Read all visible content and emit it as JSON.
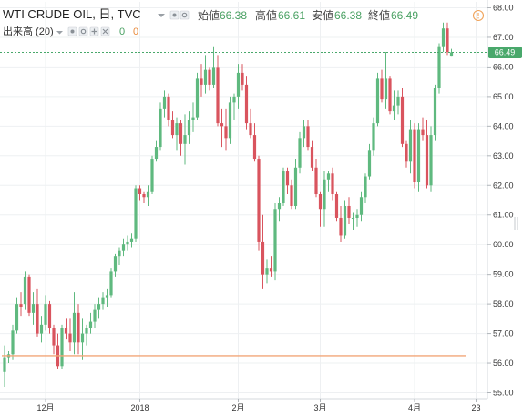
{
  "header": {
    "symbol": "WTI CRUDE OIL, 日, TVC",
    "open_label": "始値",
    "open_value": "66.38",
    "high_label": "高値",
    "high_value": "66.61",
    "low_label": "安値",
    "low_value": "66.38",
    "close_label": "終値",
    "close_value": "66.49",
    "alert_icon": "clock-alert-icon"
  },
  "indicator": {
    "label": "出来高 (20)",
    "value_a": "0",
    "value_b": "0",
    "icons": [
      "eye-icon",
      "settings-icon",
      "plus-icon",
      "close-icon"
    ]
  },
  "colors": {
    "up": "#5fb97f",
    "down": "#d9545e",
    "last_price_bg": "#49a86b",
    "volume_line": "#f2a679",
    "grid": "#eef0f2"
  },
  "chart_data": {
    "type": "candlestick",
    "title": "WTI CRUDE OIL, 日, TVC",
    "ylim": [
      54.8,
      68.2
    ],
    "y_ticks": [
      "55.00",
      "56.00",
      "57.00",
      "58.00",
      "59.00",
      "60.00",
      "61.00",
      "62.00",
      "63.00",
      "64.00",
      "65.00",
      "66.00",
      "67.00",
      "68.00"
    ],
    "x_ticks": [
      {
        "label": "12月",
        "index": 10
      },
      {
        "label": "2018",
        "index": 33
      },
      {
        "label": "2月",
        "index": 57
      },
      {
        "label": "3月",
        "index": 77
      },
      {
        "label": "4月",
        "index": 100
      },
      {
        "label": "23",
        "index": 115
      }
    ],
    "last_price": "66.49",
    "volume_value": 56.25,
    "candles": [
      [
        55.7,
        56.6,
        55.2,
        56.2
      ],
      [
        56.2,
        56.4,
        56.0,
        56.3
      ],
      [
        56.3,
        57.3,
        56.1,
        57.1
      ],
      [
        57.1,
        58.2,
        57.0,
        58.0
      ],
      [
        58.0,
        58.4,
        57.6,
        57.9
      ],
      [
        58.0,
        59.1,
        57.8,
        58.9
      ],
      [
        58.9,
        59.0,
        57.6,
        57.7
      ],
      [
        57.7,
        58.4,
        57.3,
        58.0
      ],
      [
        58.0,
        58.5,
        56.9,
        57.0
      ],
      [
        57.0,
        57.6,
        56.7,
        57.3
      ],
      [
        57.3,
        58.3,
        57.1,
        58.0
      ],
      [
        58.0,
        58.1,
        57.0,
        57.2
      ],
      [
        57.2,
        57.3,
        56.3,
        56.6
      ],
      [
        56.6,
        57.0,
        55.8,
        55.9
      ],
      [
        55.9,
        57.3,
        55.8,
        57.2
      ],
      [
        57.2,
        57.5,
        56.8,
        57.0
      ],
      [
        57.0,
        57.5,
        56.4,
        56.7
      ],
      [
        56.7,
        58.4,
        56.3,
        57.7
      ],
      [
        57.7,
        58.0,
        56.3,
        56.7
      ],
      [
        56.7,
        57.5,
        56.1,
        57.0
      ],
      [
        57.0,
        57.3,
        56.6,
        57.2
      ],
      [
        57.2,
        57.7,
        57.0,
        57.4
      ],
      [
        57.4,
        58.0,
        57.2,
        57.8
      ],
      [
        57.8,
        58.2,
        57.5,
        58.0
      ],
      [
        58.0,
        58.4,
        57.8,
        58.2
      ],
      [
        58.2,
        58.5,
        57.9,
        58.3
      ],
      [
        58.3,
        59.2,
        58.2,
        59.1
      ],
      [
        59.1,
        59.7,
        58.9,
        59.6
      ],
      [
        59.6,
        59.9,
        59.3,
        59.8
      ],
      [
        59.8,
        60.2,
        59.6,
        60.0
      ],
      [
        60.0,
        60.3,
        59.8,
        60.1
      ],
      [
        60.1,
        60.4,
        59.9,
        60.2
      ],
      [
        60.2,
        62.0,
        60.1,
        61.9
      ],
      [
        61.9,
        62.0,
        61.5,
        61.7
      ],
      [
        61.7,
        61.8,
        61.4,
        61.6
      ],
      [
        61.6,
        62.0,
        61.3,
        61.8
      ],
      [
        61.8,
        63.0,
        61.7,
        62.9
      ],
      [
        62.9,
        63.5,
        62.8,
        63.3
      ],
      [
        63.3,
        64.8,
        63.2,
        64.6
      ],
      [
        64.6,
        65.2,
        64.3,
        65.0
      ],
      [
        65.0,
        65.1,
        64.0,
        64.2
      ],
      [
        64.2,
        64.5,
        63.6,
        63.7
      ],
      [
        63.7,
        64.3,
        63.2,
        64.1
      ],
      [
        64.1,
        64.2,
        63.0,
        63.4
      ],
      [
        63.4,
        64.4,
        62.7,
        63.7
      ],
      [
        63.7,
        64.5,
        63.4,
        64.2
      ],
      [
        64.2,
        64.8,
        63.8,
        64.3
      ],
      [
        64.3,
        65.8,
        64.2,
        65.6
      ],
      [
        65.6,
        66.1,
        65.0,
        65.4
      ],
      [
        65.4,
        66.4,
        65.1,
        65.9
      ],
      [
        65.9,
        66.0,
        65.2,
        65.4
      ],
      [
        65.4,
        66.7,
        65.3,
        66.0
      ],
      [
        66.0,
        66.4,
        64.0,
        64.1
      ],
      [
        64.1,
        64.6,
        63.3,
        64.0
      ],
      [
        64.0,
        64.6,
        63.2,
        63.6
      ],
      [
        63.6,
        65.0,
        63.4,
        64.8
      ],
      [
        64.8,
        65.1,
        64.2,
        65.0
      ],
      [
        65.0,
        66.1,
        64.6,
        65.8
      ],
      [
        65.8,
        66.1,
        65.2,
        65.4
      ],
      [
        65.4,
        65.7,
        63.9,
        64.1
      ],
      [
        64.1,
        64.6,
        63.6,
        63.7
      ],
      [
        63.7,
        64.1,
        62.8,
        62.9
      ],
      [
        62.9,
        63.0,
        59.8,
        60.1
      ],
      [
        60.1,
        61.0,
        58.5,
        59.0
      ],
      [
        59.0,
        59.5,
        58.7,
        59.2
      ],
      [
        59.2,
        59.6,
        58.9,
        59.1
      ],
      [
        59.1,
        61.4,
        58.8,
        61.2
      ],
      [
        61.2,
        61.6,
        60.8,
        61.4
      ],
      [
        61.4,
        62.6,
        61.3,
        62.5
      ],
      [
        62.5,
        62.6,
        61.7,
        62.0
      ],
      [
        62.0,
        62.2,
        61.2,
        61.3
      ],
      [
        61.3,
        62.9,
        61.2,
        62.6
      ],
      [
        62.6,
        63.8,
        62.4,
        63.6
      ],
      [
        63.6,
        64.2,
        63.3,
        64.0
      ],
      [
        64.0,
        64.2,
        63.2,
        63.3
      ],
      [
        63.3,
        63.5,
        62.5,
        62.6
      ],
      [
        62.6,
        62.9,
        61.6,
        61.7
      ],
      [
        61.7,
        61.8,
        60.6,
        61.2
      ],
      [
        61.2,
        62.5,
        60.6,
        62.2
      ],
      [
        62.2,
        62.5,
        61.8,
        62.4
      ],
      [
        62.4,
        62.6,
        61.5,
        61.7
      ],
      [
        61.7,
        61.8,
        60.8,
        60.9
      ],
      [
        60.9,
        61.3,
        60.1,
        60.3
      ],
      [
        60.3,
        61.5,
        60.2,
        61.3
      ],
      [
        61.3,
        61.6,
        60.7,
        60.9
      ],
      [
        60.9,
        61.1,
        60.5,
        60.9
      ],
      [
        60.9,
        61.2,
        60.6,
        61.0
      ],
      [
        61.0,
        61.8,
        60.8,
        61.6
      ],
      [
        61.6,
        62.4,
        61.4,
        62.3
      ],
      [
        62.3,
        63.4,
        62.2,
        63.2
      ],
      [
        63.2,
        64.3,
        63.0,
        64.1
      ],
      [
        64.1,
        65.8,
        64.0,
        65.6
      ],
      [
        65.6,
        65.9,
        64.8,
        64.9
      ],
      [
        64.9,
        66.5,
        64.6,
        65.6
      ],
      [
        65.6,
        65.7,
        64.4,
        64.5
      ],
      [
        64.5,
        65.2,
        64.2,
        64.7
      ],
      [
        64.7,
        65.2,
        64.4,
        65.0
      ],
      [
        65.0,
        65.3,
        63.3,
        63.4
      ],
      [
        63.4,
        63.5,
        62.6,
        62.8
      ],
      [
        62.8,
        64.2,
        62.4,
        63.9
      ],
      [
        63.9,
        64.1,
        61.9,
        62.1
      ],
      [
        62.1,
        64.1,
        61.8,
        63.9
      ],
      [
        63.9,
        64.3,
        63.5,
        63.7
      ],
      [
        63.7,
        64.2,
        61.9,
        62.0
      ],
      [
        62.0,
        64.0,
        61.8,
        63.7
      ],
      [
        63.7,
        65.4,
        63.5,
        65.3
      ],
      [
        65.3,
        66.8,
        65.1,
        66.7
      ],
      [
        66.7,
        67.5,
        66.5,
        67.3
      ],
      [
        67.3,
        67.5,
        66.4,
        66.5
      ],
      [
        66.38,
        66.61,
        66.38,
        66.49
      ]
    ]
  }
}
